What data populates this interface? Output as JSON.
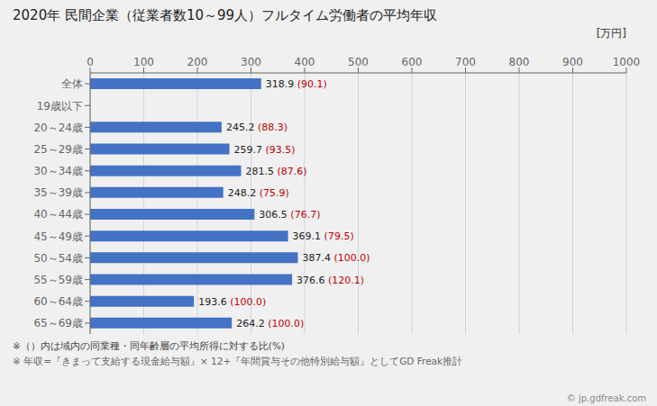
{
  "chart_data": {
    "type": "bar",
    "orientation": "horizontal",
    "title": "2020年 民間企業（従業者数10～99人）フルタイム労働者の平均年収",
    "x_label": "[万円]",
    "categories": [
      "全体",
      "19歳以下",
      "20～24歳",
      "25～29歳",
      "30～34歳",
      "35～39歳",
      "40～44歳",
      "45～49歳",
      "50～54歳",
      "55～59歳",
      "60～64歳",
      "65～69歳"
    ],
    "values": [
      318.9,
      0,
      245.2,
      259.7,
      281.5,
      248.2,
      306.5,
      369.1,
      387.4,
      376.6,
      193.6,
      264.2
    ],
    "value_labels": [
      "318.9",
      null,
      "245.2",
      "259.7",
      "281.5",
      "248.2",
      "306.5",
      "369.1",
      "387.4",
      "376.6",
      "193.6",
      "264.2"
    ],
    "pct_labels": [
      "(90.1)",
      null,
      "(88.3)",
      "(93.5)",
      "(87.6)",
      "(75.9)",
      "(76.7)",
      "(79.5)",
      "(100.0)",
      "(120.1)",
      "(100.0)",
      "(100.0)"
    ],
    "data_labels": true,
    "color": "#4472c4",
    "xlim": [
      0,
      1000
    ],
    "xticks": [
      0,
      100,
      200,
      300,
      400,
      500,
      600,
      700,
      800,
      900,
      1000
    ],
    "grid": true,
    "annotations": [
      "※（）内は域内の同業種・同年齢層の平均所得に対する比(%)",
      "※ 年収=『きまって支給する現金給与額』× 12+『年間賞与その他特別給与額』としてGD Freak推計",
      "© jp.gdfreak.com"
    ]
  }
}
